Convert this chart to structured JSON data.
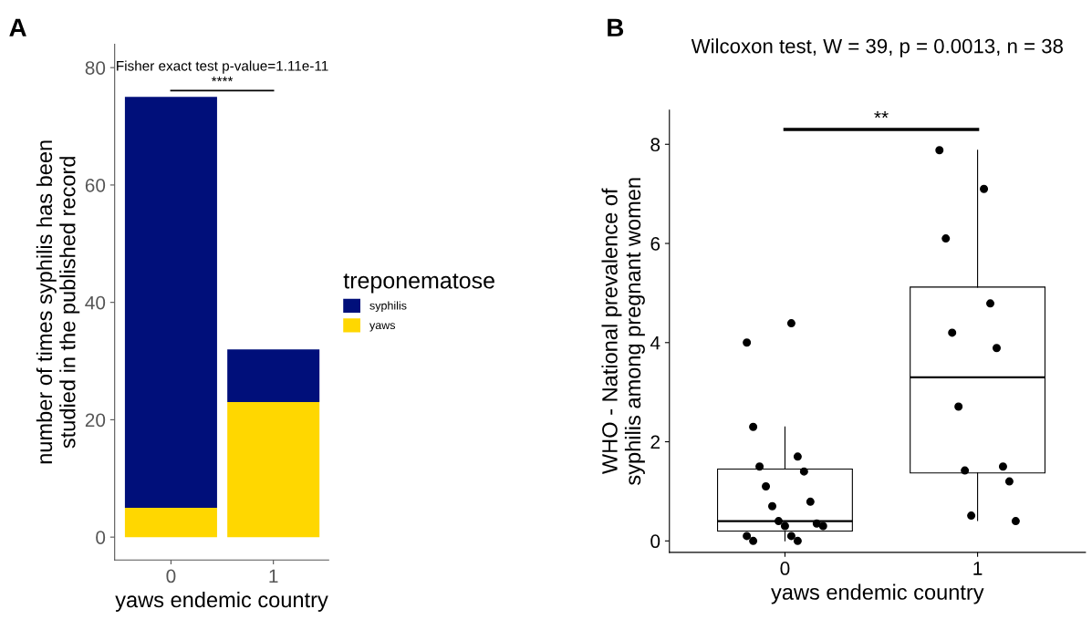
{
  "chart_data": [
    {
      "type": "bar",
      "stacked": true,
      "categories": [
        "0",
        "1"
      ],
      "xlabel": "yaws endemic country",
      "ylabel": "number of times syphilis has been\nstudied in the published record",
      "legend_title": "treponematose",
      "legend": "right",
      "ylim": [
        -3.9,
        84
      ],
      "yticks": [
        0,
        20,
        40,
        60,
        80
      ],
      "series": [
        {
          "name": "yaws",
          "color": "#ffd700",
          "values": [
            5,
            23
          ]
        },
        {
          "name": "syphilis",
          "color": "#000f7a",
          "values": [
            70,
            9
          ]
        }
      ],
      "annotations": [
        "A",
        "Fisher exact test p-value=1.11e-11",
        "****"
      ]
    },
    {
      "type": "box",
      "categories": [
        "0",
        "1"
      ],
      "title": "Wilcoxon test, W = 39, p = 0.0013, n = 38",
      "xlabel": "yaws endemic country",
      "ylabel": "WHO - National prevalence of\nsyphilis among pregnant women",
      "ylim": [
        -0.23,
        8.69
      ],
      "yticks": [
        0,
        2,
        4,
        6,
        8
      ],
      "marker": "circle",
      "series": [
        {
          "type": "box",
          "color": "#000000",
          "boxes": [
            {
              "low": 0,
              "q1": 0.2,
              "median": 0.4,
              "q3": 1.45,
              "high": 2.3
            },
            {
              "low": 0.41,
              "q1": 1.37,
              "median": 3.3,
              "q3": 5.12,
              "high": 7.88
            }
          ]
        },
        {
          "type": "scatter",
          "color": "#000000",
          "x": [
            "0",
            "0",
            "0",
            "0",
            "0",
            "0",
            "0",
            "0",
            "0",
            "0",
            "0",
            "0",
            "0",
            "0",
            "0",
            "0",
            "0",
            "1",
            "1",
            "1",
            "1",
            "1",
            "1",
            "1",
            "1",
            "1",
            "1",
            "1",
            "1"
          ],
          "values": [
            4.0,
            4.39,
            2.3,
            1.7,
            1.5,
            1.4,
            1.1,
            0.79,
            0.7,
            0.35,
            0.4,
            0.3,
            0.3,
            0.1,
            0.1,
            0,
            0,
            7.88,
            7.1,
            6.1,
            4.79,
            4.2,
            3.89,
            2.71,
            1.5,
            1.42,
            1.2,
            0.51,
            0.4
          ]
        }
      ],
      "annotations": [
        "B",
        "**"
      ]
    }
  ]
}
